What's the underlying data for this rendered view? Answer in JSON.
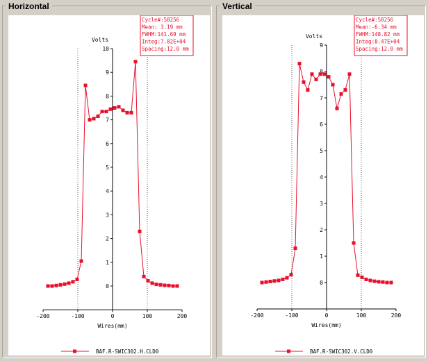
{
  "panels": [
    {
      "title": "Horizontal",
      "info": [
        "Cycle#:58256",
        "Mean: 3.19 mm",
        "FWHM:141.69 mm",
        "Integ:7.82E+04",
        "Spacing:12.0 mm"
      ],
      "legend": "BAF.R-SWIC302.H.CLD0"
    },
    {
      "title": "Vertical",
      "info": [
        "Cycle#:58256",
        "Mean:-6.34 mm",
        "FWHM:148.82 mm",
        "Integ:8.47E+04",
        "Spacing:12.0 mm"
      ],
      "legend": "BAF.R-SWIC302.V.CLD0"
    }
  ],
  "colors": {
    "series": "#e8102a",
    "grid": "#555555",
    "background": "#d4d0c8"
  },
  "chart_data": [
    {
      "type": "line",
      "ylabel": "Volts",
      "xlabel": "Wires(mm)",
      "xlim": [
        -200,
        200
      ],
      "ylim": [
        -1,
        10
      ],
      "xticks": [
        -200,
        -100,
        0,
        100,
        200
      ],
      "yticks": [
        0,
        1,
        2,
        3,
        4,
        5,
        6,
        7,
        8,
        9,
        10
      ],
      "vlines": [
        -100,
        100
      ],
      "series": [
        {
          "name": "BAF.R-SWIC302.H.CLD0",
          "x": [
            -186,
            -174,
            -162,
            -150,
            -138,
            -126,
            -114,
            -102,
            -90,
            -78,
            -66,
            -54,
            -42,
            -30,
            -18,
            -6,
            6,
            18,
            30,
            42,
            54,
            66,
            78,
            90,
            102,
            114,
            126,
            138,
            150,
            162,
            174,
            186
          ],
          "y": [
            0.0,
            0.0,
            0.02,
            0.05,
            0.08,
            0.12,
            0.18,
            0.28,
            1.05,
            8.45,
            7.0,
            7.05,
            7.15,
            7.35,
            7.35,
            7.45,
            7.5,
            7.55,
            7.4,
            7.3,
            7.3,
            9.45,
            2.3,
            0.4,
            0.22,
            0.12,
            0.07,
            0.05,
            0.03,
            0.02,
            0.0,
            0.0
          ]
        }
      ]
    },
    {
      "type": "line",
      "ylabel": "Volts",
      "xlabel": "Wires(mm)",
      "xlim": [
        -200,
        200
      ],
      "ylim": [
        -1,
        9
      ],
      "xticks": [
        -200,
        -100,
        0,
        100,
        200
      ],
      "yticks": [
        0,
        1,
        2,
        3,
        4,
        5,
        6,
        7,
        8,
        9
      ],
      "vlines": [
        -100,
        100
      ],
      "series": [
        {
          "name": "BAF.R-SWIC302.V.CLD0",
          "x": [
            -186,
            -174,
            -162,
            -150,
            -138,
            -126,
            -114,
            -102,
            -90,
            -78,
            -66,
            -54,
            -42,
            -30,
            -18,
            -6,
            6,
            18,
            30,
            42,
            54,
            66,
            78,
            90,
            102,
            114,
            126,
            138,
            150,
            162,
            174,
            186
          ],
          "y": [
            0.0,
            0.02,
            0.04,
            0.06,
            0.08,
            0.12,
            0.18,
            0.3,
            1.3,
            8.3,
            7.6,
            7.3,
            7.9,
            7.7,
            7.9,
            7.9,
            7.8,
            7.5,
            6.6,
            7.15,
            7.3,
            7.9,
            1.5,
            0.28,
            0.2,
            0.12,
            0.08,
            0.05,
            0.03,
            0.02,
            0.0,
            0.0
          ]
        }
      ]
    }
  ]
}
